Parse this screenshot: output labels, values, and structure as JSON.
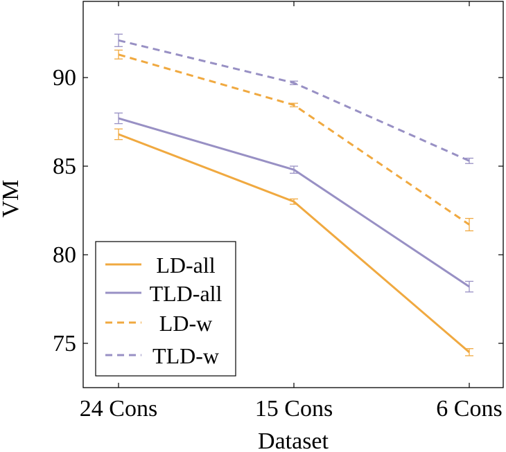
{
  "chart_data": {
    "type": "line",
    "title": "",
    "xlabel": "Dataset",
    "ylabel": "VM",
    "categories": [
      "24 Cons",
      "15 Cons",
      "6 Cons"
    ],
    "yticks": [
      75,
      80,
      85,
      90
    ],
    "ylim": [
      72.5,
      94.3
    ],
    "grid": false,
    "legend_position": "bottom-left",
    "series": [
      {
        "name": "LD-all",
        "color": "#F0A940",
        "dash": "solid",
        "values": [
          86.8,
          83.0,
          74.5
        ],
        "errors": [
          0.3,
          0.15,
          0.2
        ]
      },
      {
        "name": "TLD-all",
        "color": "#9890C4",
        "dash": "solid",
        "values": [
          87.7,
          84.8,
          78.2
        ],
        "errors": [
          0.3,
          0.2,
          0.3
        ]
      },
      {
        "name": "LD-w",
        "color": "#F0A940",
        "dash": "dashed",
        "values": [
          91.3,
          88.45,
          81.7
        ],
        "errors": [
          0.25,
          0.1,
          0.35
        ]
      },
      {
        "name": "TLD-w",
        "color": "#9890C4",
        "dash": "dashed",
        "values": [
          92.1,
          89.7,
          85.3
        ],
        "errors": [
          0.35,
          0.1,
          0.15
        ]
      }
    ]
  }
}
